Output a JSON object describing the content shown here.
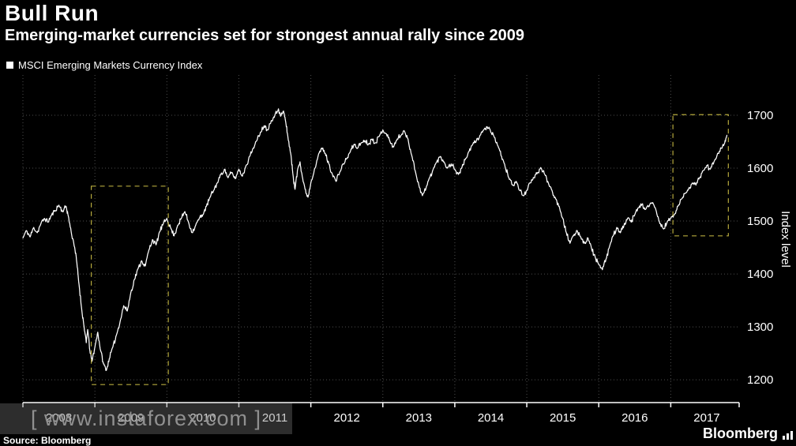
{
  "header": {
    "title": "Bull Run",
    "subtitle": "Emerging-market currencies set for strongest annual rally since 2009"
  },
  "legend": {
    "label": "MSCI Emerging Markets Currency Index",
    "marker_color": "#ffffff"
  },
  "watermark": {
    "text": "[ www.instaforex.com ]"
  },
  "footer": {
    "source": "Source: Bloomberg",
    "brand": "Bloomberg"
  },
  "chart_data": {
    "type": "line",
    "title": "Bull Run",
    "y_axis_title": "Index level",
    "xlim": [
      2008,
      2017.95
    ],
    "ylim": [
      1157,
      1776
    ],
    "y_ticks": [
      1200,
      1300,
      1400,
      1500,
      1600,
      1700
    ],
    "x_tick_years": [
      2008,
      2009,
      2010,
      2011,
      2012,
      2013,
      2014,
      2015,
      2016,
      2017
    ],
    "x_tick_labels": [
      "2008",
      "2009",
      "2010",
      "2011",
      "2012",
      "2013",
      "2014",
      "2015",
      "2016",
      "2017"
    ],
    "grid": "dotted",
    "grid_color": "#4d4d4d",
    "axis_color": "#ffffff",
    "background": "#000000",
    "highlight_color": "#b5a93d",
    "highlights": [
      {
        "name": "rally-2009-box",
        "x0": 2008.95,
        "x1": 2010.02,
        "y0": 1191,
        "y1": 1566
      },
      {
        "name": "rally-2017-box",
        "x0": 2017.03,
        "x1": 2017.8,
        "y0": 1472,
        "y1": 1701
      }
    ],
    "line_jitter": {
      "amplitude": 5,
      "subdivisions": 6,
      "seed": 11
    },
    "series": [
      {
        "name": "MSCI Emerging Markets Currency Index",
        "color": "#ffffff",
        "points": [
          [
            2008.0,
            1468
          ],
          [
            2008.05,
            1482
          ],
          [
            2008.1,
            1470
          ],
          [
            2008.15,
            1488
          ],
          [
            2008.2,
            1478
          ],
          [
            2008.25,
            1495
          ],
          [
            2008.3,
            1505
          ],
          [
            2008.35,
            1498
          ],
          [
            2008.4,
            1512
          ],
          [
            2008.45,
            1520
          ],
          [
            2008.5,
            1530
          ],
          [
            2008.55,
            1518
          ],
          [
            2008.6,
            1528
          ],
          [
            2008.63,
            1510
          ],
          [
            2008.67,
            1480
          ],
          [
            2008.72,
            1450
          ],
          [
            2008.75,
            1420
          ],
          [
            2008.78,
            1380
          ],
          [
            2008.82,
            1330
          ],
          [
            2008.85,
            1300
          ],
          [
            2008.88,
            1270
          ],
          [
            2008.9,
            1295
          ],
          [
            2008.93,
            1255
          ],
          [
            2008.96,
            1235
          ],
          [
            2009.0,
            1262
          ],
          [
            2009.04,
            1290
          ],
          [
            2009.08,
            1255
          ],
          [
            2009.12,
            1230
          ],
          [
            2009.16,
            1218
          ],
          [
            2009.2,
            1240
          ],
          [
            2009.25,
            1262
          ],
          [
            2009.3,
            1285
          ],
          [
            2009.35,
            1310
          ],
          [
            2009.4,
            1340
          ],
          [
            2009.45,
            1330
          ],
          [
            2009.5,
            1365
          ],
          [
            2009.55,
            1390
          ],
          [
            2009.6,
            1410
          ],
          [
            2009.65,
            1425
          ],
          [
            2009.7,
            1415
          ],
          [
            2009.75,
            1445
          ],
          [
            2009.8,
            1465
          ],
          [
            2009.85,
            1455
          ],
          [
            2009.9,
            1480
          ],
          [
            2009.95,
            1495
          ],
          [
            2010.0,
            1505
          ],
          [
            2010.05,
            1488
          ],
          [
            2010.1,
            1472
          ],
          [
            2010.15,
            1492
          ],
          [
            2010.2,
            1505
          ],
          [
            2010.25,
            1518
          ],
          [
            2010.3,
            1498
          ],
          [
            2010.35,
            1478
          ],
          [
            2010.4,
            1492
          ],
          [
            2010.45,
            1505
          ],
          [
            2010.5,
            1512
          ],
          [
            2010.55,
            1528
          ],
          [
            2010.6,
            1545
          ],
          [
            2010.65,
            1558
          ],
          [
            2010.7,
            1572
          ],
          [
            2010.75,
            1588
          ],
          [
            2010.8,
            1598
          ],
          [
            2010.85,
            1582
          ],
          [
            2010.9,
            1592
          ],
          [
            2010.95,
            1580
          ],
          [
            2011.0,
            1598
          ],
          [
            2011.05,
            1585
          ],
          [
            2011.1,
            1605
          ],
          [
            2011.15,
            1622
          ],
          [
            2011.2,
            1638
          ],
          [
            2011.25,
            1652
          ],
          [
            2011.3,
            1668
          ],
          [
            2011.35,
            1680
          ],
          [
            2011.4,
            1672
          ],
          [
            2011.45,
            1690
          ],
          [
            2011.5,
            1700
          ],
          [
            2011.55,
            1712
          ],
          [
            2011.58,
            1698
          ],
          [
            2011.62,
            1708
          ],
          [
            2011.65,
            1688
          ],
          [
            2011.68,
            1660
          ],
          [
            2011.72,
            1628
          ],
          [
            2011.75,
            1590
          ],
          [
            2011.78,
            1560
          ],
          [
            2011.82,
            1600
          ],
          [
            2011.85,
            1612
          ],
          [
            2011.88,
            1585
          ],
          [
            2011.92,
            1560
          ],
          [
            2011.96,
            1545
          ],
          [
            2012.0,
            1572
          ],
          [
            2012.05,
            1598
          ],
          [
            2012.1,
            1622
          ],
          [
            2012.15,
            1638
          ],
          [
            2012.2,
            1628
          ],
          [
            2012.25,
            1608
          ],
          [
            2012.3,
            1588
          ],
          [
            2012.35,
            1575
          ],
          [
            2012.4,
            1592
          ],
          [
            2012.45,
            1608
          ],
          [
            2012.5,
            1618
          ],
          [
            2012.55,
            1632
          ],
          [
            2012.6,
            1645
          ],
          [
            2012.65,
            1638
          ],
          [
            2012.7,
            1648
          ],
          [
            2012.75,
            1652
          ],
          [
            2012.8,
            1645
          ],
          [
            2012.85,
            1655
          ],
          [
            2012.9,
            1648
          ],
          [
            2012.95,
            1660
          ],
          [
            2013.0,
            1672
          ],
          [
            2013.05,
            1665
          ],
          [
            2013.1,
            1650
          ],
          [
            2013.15,
            1640
          ],
          [
            2013.2,
            1655
          ],
          [
            2013.25,
            1662
          ],
          [
            2013.3,
            1670
          ],
          [
            2013.35,
            1655
          ],
          [
            2013.4,
            1625
          ],
          [
            2013.45,
            1595
          ],
          [
            2013.5,
            1568
          ],
          [
            2013.55,
            1548
          ],
          [
            2013.6,
            1562
          ],
          [
            2013.65,
            1582
          ],
          [
            2013.7,
            1598
          ],
          [
            2013.75,
            1612
          ],
          [
            2013.8,
            1622
          ],
          [
            2013.85,
            1612
          ],
          [
            2013.9,
            1600
          ],
          [
            2013.95,
            1608
          ],
          [
            2014.0,
            1598
          ],
          [
            2014.05,
            1588
          ],
          [
            2014.1,
            1602
          ],
          [
            2014.15,
            1618
          ],
          [
            2014.2,
            1632
          ],
          [
            2014.25,
            1645
          ],
          [
            2014.3,
            1652
          ],
          [
            2014.35,
            1662
          ],
          [
            2014.4,
            1672
          ],
          [
            2014.45,
            1678
          ],
          [
            2014.5,
            1668
          ],
          [
            2014.55,
            1658
          ],
          [
            2014.6,
            1642
          ],
          [
            2014.65,
            1622
          ],
          [
            2014.7,
            1602
          ],
          [
            2014.75,
            1582
          ],
          [
            2014.8,
            1568
          ],
          [
            2014.85,
            1575
          ],
          [
            2014.9,
            1558
          ],
          [
            2014.95,
            1548
          ],
          [
            2015.0,
            1558
          ],
          [
            2015.05,
            1572
          ],
          [
            2015.1,
            1582
          ],
          [
            2015.15,
            1592
          ],
          [
            2015.2,
            1600
          ],
          [
            2015.25,
            1588
          ],
          [
            2015.3,
            1572
          ],
          [
            2015.35,
            1558
          ],
          [
            2015.4,
            1542
          ],
          [
            2015.45,
            1528
          ],
          [
            2015.5,
            1505
          ],
          [
            2015.55,
            1478
          ],
          [
            2015.6,
            1458
          ],
          [
            2015.65,
            1472
          ],
          [
            2015.7,
            1482
          ],
          [
            2015.75,
            1470
          ],
          [
            2015.8,
            1458
          ],
          [
            2015.85,
            1468
          ],
          [
            2015.9,
            1448
          ],
          [
            2015.95,
            1432
          ],
          [
            2016.0,
            1418
          ],
          [
            2016.05,
            1408
          ],
          [
            2016.1,
            1428
          ],
          [
            2016.15,
            1452
          ],
          [
            2016.2,
            1472
          ],
          [
            2016.25,
            1488
          ],
          [
            2016.3,
            1478
          ],
          [
            2016.35,
            1492
          ],
          [
            2016.4,
            1505
          ],
          [
            2016.45,
            1498
          ],
          [
            2016.5,
            1512
          ],
          [
            2016.55,
            1525
          ],
          [
            2016.6,
            1532
          ],
          [
            2016.65,
            1522
          ],
          [
            2016.7,
            1528
          ],
          [
            2016.75,
            1535
          ],
          [
            2016.8,
            1518
          ],
          [
            2016.85,
            1495
          ],
          [
            2016.9,
            1485
          ],
          [
            2016.95,
            1498
          ],
          [
            2017.0,
            1505
          ],
          [
            2017.05,
            1512
          ],
          [
            2017.1,
            1528
          ],
          [
            2017.15,
            1542
          ],
          [
            2017.2,
            1552
          ],
          [
            2017.25,
            1562
          ],
          [
            2017.3,
            1572
          ],
          [
            2017.35,
            1568
          ],
          [
            2017.4,
            1582
          ],
          [
            2017.45,
            1595
          ],
          [
            2017.5,
            1605
          ],
          [
            2017.55,
            1598
          ],
          [
            2017.6,
            1612
          ],
          [
            2017.65,
            1628
          ],
          [
            2017.7,
            1638
          ],
          [
            2017.75,
            1648
          ],
          [
            2017.78,
            1662
          ]
        ]
      }
    ]
  }
}
